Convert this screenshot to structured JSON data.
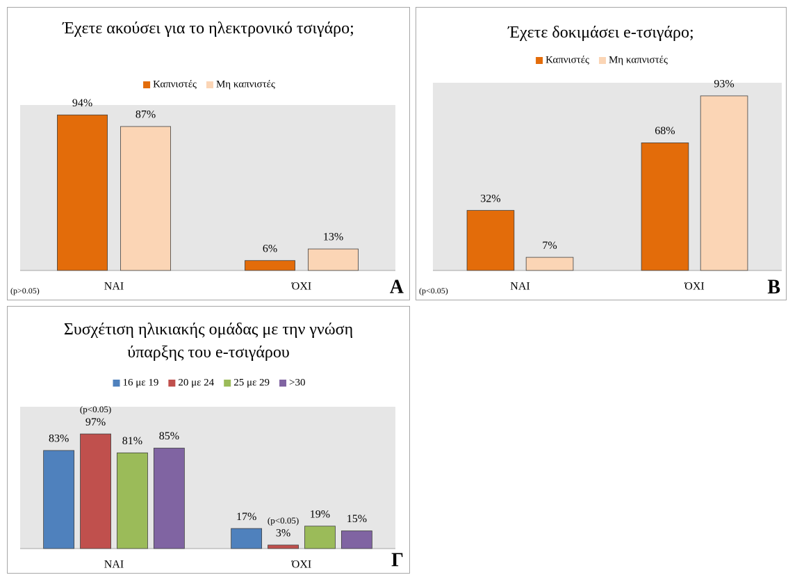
{
  "chart_data": [
    {
      "type": "bar",
      "title": "Έχετε ακούσει για το ηλεκτρονικό τσιγάρο;",
      "categories": [
        "ΝΑΙ",
        "ΌΧΙ"
      ],
      "series": [
        {
          "name": "Καπνιστές",
          "color": "#e36c0a",
          "values": [
            94,
            6
          ],
          "value_labels": [
            "94%",
            "6%"
          ]
        },
        {
          "name": "Μη καπνιστές",
          "color": "#fbd5b5",
          "values": [
            87,
            13
          ],
          "value_labels": [
            "87%",
            "13%"
          ]
        }
      ],
      "ylim": [
        0,
        100
      ],
      "legend": "top",
      "note": "(p>0.05)",
      "panel_label": "Α"
    },
    {
      "type": "bar",
      "title": "Έχετε δοκιμάσει e-τσιγάρο;",
      "categories": [
        "ΝΑΙ",
        "ΌΧΙ"
      ],
      "series": [
        {
          "name": "Καπνιστές",
          "color": "#e36c0a",
          "values": [
            32,
            68
          ],
          "value_labels": [
            "32%",
            "68%"
          ]
        },
        {
          "name": "Μη καπνιστές",
          "color": "#fbd5b5",
          "values": [
            7,
            93
          ],
          "value_labels": [
            "7%",
            "93%"
          ]
        }
      ],
      "ylim": [
        0,
        100
      ],
      "legend": "top",
      "note": "(p<0.05)",
      "panel_label": "Β"
    },
    {
      "type": "bar",
      "title": "Συσχέτιση ηλικιακής ομάδας με την γνώση ύπαρξης του e-τσιγάρου",
      "categories": [
        "ΝΑΙ",
        "ΌΧΙ"
      ],
      "series": [
        {
          "name": "16 με 19",
          "color": "#4f81bd",
          "values": [
            83,
            17
          ],
          "value_labels": [
            "83%",
            "17%"
          ]
        },
        {
          "name": "20 με 24",
          "color": "#c0504d",
          "values": [
            97,
            3
          ],
          "value_labels": [
            "97%",
            "3%"
          ]
        },
        {
          "name": "25 με 29",
          "color": "#9bbb59",
          "values": [
            81,
            19
          ],
          "value_labels": [
            "81%",
            "19%"
          ]
        },
        {
          "name": ">30",
          "color": "#8064a2",
          "values": [
            85,
            15
          ],
          "value_labels": [
            "85%",
            "15%"
          ]
        }
      ],
      "ylim": [
        0,
        120
      ],
      "legend": "top",
      "annotations": [
        "(p<0.05)",
        "(p<0.05)"
      ],
      "panel_label": "Γ"
    }
  ]
}
